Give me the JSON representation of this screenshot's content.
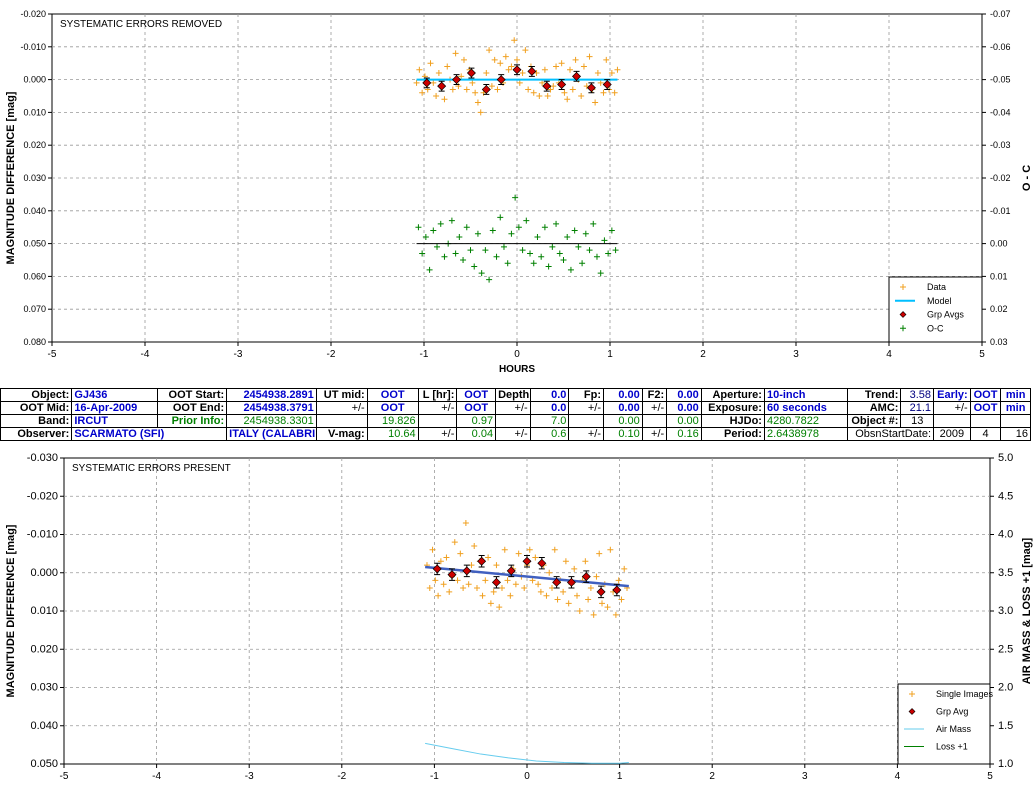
{
  "colors": {
    "data": "#f0a020",
    "model": "#00bfff",
    "grp_avg": "#cc0000",
    "oc": "#008000",
    "trend": "#4060c0",
    "air_mass": "#66ccee",
    "loss": "#008000",
    "grid": "#999999"
  },
  "chart_data": [
    {
      "type": "scatter",
      "title": "SYSTEMATIC ERRORS REMOVED",
      "xlabel": "HOURS",
      "ylabel": "MAGNITUDE DIFFERENCE [mag]",
      "ylabel_right": "O - C",
      "xlim": [
        -5,
        5
      ],
      "ylim": [
        -0.02,
        0.08
      ],
      "ylim_right": [
        -0.07,
        0.03
      ],
      "x_ticks": [
        "-5",
        "-4",
        "-3",
        "-2",
        "-1",
        "0",
        "1",
        "2",
        "3",
        "4",
        "5"
      ],
      "y_ticks": [
        "-0.020",
        "-0.010",
        "0.000",
        "0.010",
        "0.020",
        "0.030",
        "0.040",
        "0.050",
        "0.060",
        "0.070",
        "0.080"
      ],
      "y_ticks_right": [
        "-0.07",
        "-0.06",
        "-0.05",
        "-0.04",
        "-0.03",
        "-0.02",
        "-0.01",
        "0.00",
        "0.01",
        "0.02",
        "0.03"
      ],
      "y_reversed": true,
      "grid": true,
      "legend": {
        "position": "bottom-right",
        "items": [
          "Data",
          "Model",
          "Grp Avgs",
          "O-C"
        ]
      },
      "series": [
        {
          "name": "Data",
          "style": "plus",
          "x": [
            -1.08,
            -1.05,
            -1.02,
            -0.99,
            -0.96,
            -0.93,
            -0.9,
            -0.87,
            -0.84,
            -0.81,
            -0.78,
            -0.75,
            -0.72,
            -0.69,
            -0.66,
            -0.63,
            -0.6,
            -0.57,
            -0.54,
            -0.51,
            -0.48,
            -0.45,
            -0.42,
            -0.39,
            -0.36,
            -0.33,
            -0.3,
            -0.27,
            -0.24,
            -0.21,
            -0.18,
            -0.15,
            -0.12,
            -0.09,
            -0.06,
            -0.03,
            0.0,
            0.03,
            0.06,
            0.09,
            0.12,
            0.15,
            0.18,
            0.21,
            0.24,
            0.27,
            0.3,
            0.33,
            0.36,
            0.39,
            0.42,
            0.45,
            0.48,
            0.51,
            0.54,
            0.57,
            0.6,
            0.63,
            0.66,
            0.69,
            0.72,
            0.75,
            0.78,
            0.81,
            0.84,
            0.87,
            0.9,
            0.93,
            0.96,
            0.99,
            1.02,
            1.05,
            1.08
          ],
          "y": [
            0.001,
            -0.003,
            0.004,
            -0.001,
            0.003,
            -0.005,
            0.001,
            0.005,
            -0.002,
            0.002,
            0.006,
            -0.004,
            0.0,
            0.003,
            -0.008,
            0.002,
            -0.001,
            -0.006,
            0.003,
            -0.003,
            0.001,
            0.004,
            0.007,
            0.01,
            0.004,
            -0.002,
            -0.009,
            0.002,
            -0.006,
            0.003,
            -0.005,
            0.001,
            -0.007,
            -0.003,
            -0.004,
            -0.012,
            -0.006,
            0.001,
            -0.002,
            -0.009,
            0.003,
            -0.004,
            0.004,
            -0.002,
            0.005,
            0.001,
            -0.003,
            0.005,
            0.003,
            0.002,
            -0.004,
            0.001,
            -0.005,
            0.004,
            0.006,
            -0.003,
            0.003,
            -0.006,
            0.0,
            0.005,
            -0.004,
            0.002,
            -0.007,
            0.003,
            0.007,
            -0.002,
            0.001,
            0.004,
            -0.006,
            0.003,
            -0.002,
            0.004,
            -0.003
          ]
        },
        {
          "name": "Model",
          "style": "line",
          "x": [
            -1.08,
            1.08
          ],
          "y": [
            0.0,
            0.0
          ]
        },
        {
          "name": "Grp Avgs",
          "style": "diamond-errorbar",
          "x": [
            -0.97,
            -0.81,
            -0.65,
            -0.49,
            -0.33,
            -0.17,
            0.0,
            0.16,
            0.32,
            0.48,
            0.64,
            0.8,
            0.97
          ],
          "y": [
            0.001,
            0.002,
            0.0,
            -0.002,
            0.003,
            0.0,
            -0.003,
            -0.0025,
            0.002,
            0.0015,
            -0.001,
            0.0025,
            0.0015
          ],
          "err": [
            0.0015,
            0.0015,
            0.0015,
            0.0015,
            0.0015,
            0.0015,
            0.0015,
            0.0015,
            0.0015,
            0.0015,
            0.0015,
            0.0015,
            0.0015
          ]
        },
        {
          "name": "O-C",
          "style": "plus",
          "axis": "right",
          "x": [
            -1.06,
            -1.02,
            -0.98,
            -0.94,
            -0.9,
            -0.86,
            -0.82,
            -0.78,
            -0.74,
            -0.7,
            -0.66,
            -0.62,
            -0.58,
            -0.54,
            -0.5,
            -0.46,
            -0.42,
            -0.38,
            -0.34,
            -0.3,
            -0.26,
            -0.22,
            -0.18,
            -0.14,
            -0.1,
            -0.06,
            -0.02,
            0.02,
            0.06,
            0.1,
            0.14,
            0.18,
            0.22,
            0.26,
            0.3,
            0.34,
            0.38,
            0.42,
            0.46,
            0.5,
            0.54,
            0.58,
            0.62,
            0.66,
            0.7,
            0.74,
            0.78,
            0.82,
            0.86,
            0.9,
            0.94,
            0.98,
            1.02,
            1.06
          ],
          "y": [
            -0.005,
            0.003,
            -0.002,
            0.008,
            -0.004,
            0.001,
            -0.006,
            0.004,
            0.0,
            -0.007,
            0.003,
            -0.002,
            0.005,
            -0.005,
            0.002,
            0.007,
            -0.003,
            0.009,
            0.002,
            0.011,
            -0.004,
            0.004,
            -0.008,
            0.001,
            0.006,
            -0.003,
            -0.014,
            -0.005,
            0.002,
            -0.007,
            0.003,
            0.006,
            -0.002,
            0.004,
            -0.005,
            0.007,
            0.001,
            -0.006,
            0.003,
            0.005,
            -0.002,
            0.008,
            -0.004,
            0.001,
            0.006,
            -0.003,
            0.002,
            -0.006,
            0.004,
            0.009,
            -0.001,
            0.003,
            -0.004,
            0.002
          ]
        },
        {
          "name": "O-C zero",
          "style": "line",
          "axis": "right",
          "x": [
            -1.08,
            1.08
          ],
          "y": [
            0.0,
            0.0
          ]
        }
      ]
    },
    {
      "type": "scatter",
      "title": "SYSTEMATIC ERRORS PRESENT",
      "xlabel": "",
      "ylabel": "MAGNITUDE DIFFERENCE [mag]",
      "ylabel_right": "AIR MASS & LOSS +1 [mag]",
      "xlim": [
        -5,
        5
      ],
      "ylim": [
        -0.03,
        0.05
      ],
      "ylim_right": [
        1.0,
        5.0
      ],
      "x_ticks": [
        "-5",
        "-4",
        "-3",
        "-2",
        "-1",
        "0",
        "1",
        "2",
        "3",
        "4",
        "5"
      ],
      "y_ticks": [
        "-0.030",
        "-0.020",
        "-0.010",
        "0.000",
        "0.010",
        "0.020",
        "0.030",
        "0.040",
        "0.050"
      ],
      "y_ticks_right": [
        "5.0",
        "4.5",
        "4.0",
        "3.5",
        "3.0",
        "2.5",
        "2.0",
        "1.5",
        "1.0"
      ],
      "y_reversed": true,
      "grid": true,
      "legend": {
        "position": "bottom-right",
        "items": [
          "Single Images",
          "Grp Avg",
          "Air Mass",
          "Loss +1"
        ]
      },
      "series": [
        {
          "name": "Single Images",
          "style": "plus",
          "x": [
            -1.08,
            -1.05,
            -1.02,
            -0.99,
            -0.96,
            -0.93,
            -0.9,
            -0.87,
            -0.84,
            -0.81,
            -0.78,
            -0.75,
            -0.72,
            -0.69,
            -0.66,
            -0.63,
            -0.6,
            -0.57,
            -0.54,
            -0.51,
            -0.48,
            -0.45,
            -0.42,
            -0.39,
            -0.36,
            -0.33,
            -0.3,
            -0.27,
            -0.24,
            -0.21,
            -0.18,
            -0.15,
            -0.12,
            -0.09,
            -0.06,
            -0.03,
            0.0,
            0.03,
            0.06,
            0.09,
            0.12,
            0.15,
            0.18,
            0.21,
            0.24,
            0.27,
            0.3,
            0.33,
            0.36,
            0.39,
            0.42,
            0.45,
            0.48,
            0.51,
            0.54,
            0.57,
            0.6,
            0.63,
            0.66,
            0.69,
            0.72,
            0.75,
            0.78,
            0.81,
            0.84,
            0.87,
            0.9,
            0.93,
            0.96,
            0.99,
            1.02,
            1.05,
            1.08
          ],
          "y": [
            -0.002,
            0.004,
            -0.006,
            0.002,
            0.006,
            -0.003,
            0.003,
            -0.004,
            0.005,
            0.001,
            -0.008,
            0.002,
            -0.005,
            0.004,
            -0.013,
            0.003,
            -0.002,
            -0.007,
            0.004,
            -0.003,
            0.006,
            0.002,
            -0.004,
            0.008,
            0.005,
            -0.002,
            0.009,
            0.004,
            -0.006,
            0.002,
            0.006,
            -0.001,
            0.003,
            -0.005,
            0.001,
            0.004,
            -0.002,
            -0.006,
            0.002,
            -0.004,
            0.003,
            0.005,
            -0.002,
            0.006,
            0.0,
            0.004,
            -0.006,
            0.007,
            0.002,
            0.005,
            -0.003,
            0.008,
            0.003,
            -0.001,
            0.006,
            0.01,
            0.002,
            -0.003,
            0.007,
            0.004,
            0.011,
            0.001,
            -0.005,
            0.008,
            0.003,
            0.009,
            -0.006,
            0.005,
            0.011,
            0.002,
            0.007,
            -0.001,
            0.004
          ]
        },
        {
          "name": "Trend",
          "style": "line",
          "x": [
            -1.1,
            1.1
          ],
          "y": [
            -0.0015,
            0.0035
          ]
        },
        {
          "name": "Grp Avg",
          "style": "diamond-errorbar",
          "x": [
            -0.97,
            -0.81,
            -0.65,
            -0.49,
            -0.33,
            -0.17,
            0.0,
            0.16,
            0.32,
            0.48,
            0.64,
            0.8,
            0.97
          ],
          "y": [
            -0.001,
            0.0005,
            -0.0005,
            -0.003,
            0.0025,
            -0.0005,
            -0.003,
            -0.0025,
            0.0025,
            0.0025,
            0.001,
            0.005,
            0.0045
          ],
          "err": [
            0.0015,
            0.0015,
            0.0015,
            0.0015,
            0.0015,
            0.0015,
            0.0015,
            0.0015,
            0.0015,
            0.0015,
            0.0015,
            0.0015,
            0.0015
          ]
        },
        {
          "name": "Air Mass",
          "style": "line",
          "axis": "right",
          "x": [
            -1.1,
            -0.8,
            -0.5,
            -0.2,
            0.1,
            0.4,
            0.7,
            1.0,
            1.1
          ],
          "y": [
            1.27,
            1.2,
            1.13,
            1.08,
            1.04,
            1.02,
            1.01,
            1.01,
            1.02
          ]
        }
      ]
    }
  ],
  "info": {
    "object_label": "Object:",
    "object_value": "GJ436",
    "oot_start_label": "OOT Start:",
    "oot_start_value": "2454938.2891",
    "ut_mid_label": "UT mid:",
    "ut_mid_value": "OOT",
    "l_hr_label": "L [hr]:",
    "l_hr_value": "OOT",
    "depth_label": "Depth:",
    "depth_value": "0.0",
    "fp_label": "Fp:",
    "fp_value": "0.00",
    "f2_label": "F2:",
    "f2_value": "0.00",
    "aperture_label": "Aperture:",
    "aperture_value": "10-inch",
    "trend_label": "Trend:",
    "trend_value": "3.58",
    "early_label": "Early:",
    "early_value": "OOT",
    "early_unit": "min",
    "oot_mid_label": "OOT Mid:",
    "oot_mid_value": "16-Apr-2009",
    "oot_end_label": "OOT End:",
    "oot_end_value": "2454938.3791",
    "pm": "+/-",
    "ut_mid_pm_value": "OOT",
    "l_hr_pm_value": "OOT",
    "depth_pm_value": "0.0",
    "fp_pm_value": "0.00",
    "f2_pm_value": "0.00",
    "exposure_label": "Exposure:",
    "exposure_value": "60 seconds",
    "amc_label": "AMC:",
    "amc_value": "21.1",
    "early_pm_value": "OOT",
    "early_pm_unit": "min",
    "band_label": "Band:",
    "band_value": "IRCUT",
    "prior_info_label": "Prior Info:",
    "prior_info_value": "2454938.3301",
    "prior_ut_mid": "19.826",
    "prior_l_hr": "0.97",
    "prior_depth": "7.0",
    "prior_fp": "0.00",
    "prior_f2": "0.00",
    "hjdo_label": "HJDo:",
    "hjdo_value": "4280.7822",
    "object_num_label": "Object #:",
    "object_num_value": "13",
    "observer_label": "Observer:",
    "observer_value": "SCARMATO (SFI)",
    "location_value": "ITALY (CALABRI",
    "vmag_label": "V-mag:",
    "vmag_value": "10.64",
    "vmag_l_hr_pm": "0.04",
    "vmag_depth_pm": "0.6",
    "vmag_fp_pm": "0.10",
    "vmag_f2_pm": "0.16",
    "period_label": "Period:",
    "period_value": "2.6438978",
    "obsn_start_label": "ObsnStartDate:",
    "obsn_year": "2009",
    "obsn_month": "4",
    "obsn_day": "16"
  }
}
